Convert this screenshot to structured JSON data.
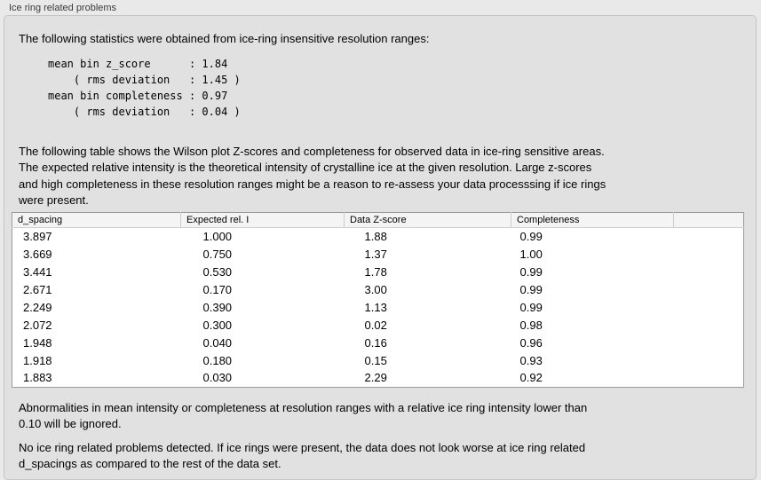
{
  "window": {
    "title": "Ice ring related problems"
  },
  "panel": {
    "intro_text": "The following statistics were obtained from ice-ring insensitive resolution ranges:",
    "stats_block": "mean bin z_score      : 1.84\n    ( rms deviation   : 1.45 )\nmean bin completeness : 0.97\n    ( rms deviation   : 0.04 )",
    "table_description": "The following table shows the Wilson plot Z-scores and completeness for observed data in ice-ring sensitive areas.\nThe expected relative intensity is the theoretical intensity of crystalline ice at the given resolution. Large z-scores\nand high completeness in these resolution ranges might be a reason to re-assess your data processsing if ice rings\nwere present.",
    "ignore_note": "Abnormalities in mean intensity or completeness at resolution ranges with a relative ice ring intensity lower than\n0.10 will be ignored.",
    "conclusion": "No ice ring related problems detected. If ice rings were present, the data does not look worse at ice ring related\nd_spacings as compared to the rest of the data set."
  },
  "table": {
    "columns": [
      "d_spacing",
      "Expected rel. I",
      "Data Z-score",
      "Completeness"
    ],
    "rows": [
      [
        "3.897",
        "1.000",
        "1.88",
        "0.99"
      ],
      [
        "3.669",
        "0.750",
        "1.37",
        "1.00"
      ],
      [
        "3.441",
        "0.530",
        "1.78",
        "0.99"
      ],
      [
        "2.671",
        "0.170",
        "3.00",
        "0.99"
      ],
      [
        "2.249",
        "0.390",
        "1.13",
        "0.99"
      ],
      [
        "2.072",
        "0.300",
        "0.02",
        "0.98"
      ],
      [
        "1.948",
        "0.040",
        "0.16",
        "0.96"
      ],
      [
        "1.918",
        "0.180",
        "0.15",
        "0.93"
      ],
      [
        "1.883",
        "0.030",
        "2.29",
        "0.92"
      ]
    ]
  },
  "colors": {
    "page_background": "#e9e9e9",
    "panel_background": "#e1e1e1",
    "table_header_background": "#f4f4f4",
    "table_body_background": "#ffffff",
    "table_border": "#9a9a9a"
  }
}
